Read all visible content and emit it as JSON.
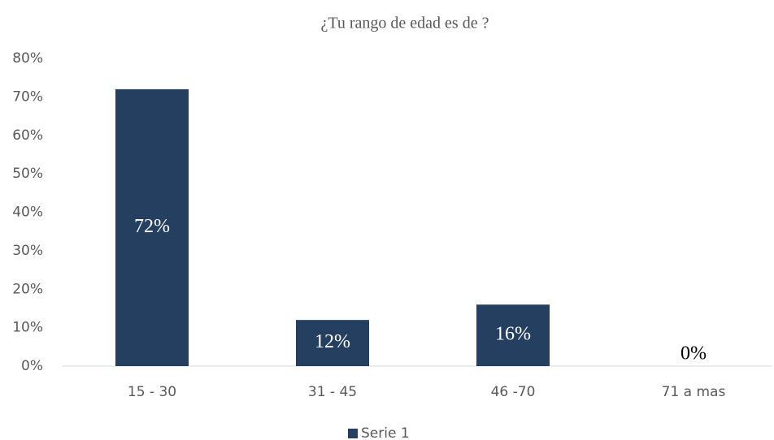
{
  "chart_data": {
    "type": "bar",
    "title": "¿Tu rango de edad es de ?",
    "categories": [
      "15 - 30",
      "31  - 45",
      "46 -70",
      "71 a mas"
    ],
    "series": [
      {
        "name": "Serie 1",
        "color": "#243f60",
        "values": [
          72,
          12,
          16,
          0
        ],
        "value_labels": [
          "72%",
          "12%",
          "16%",
          "0%"
        ]
      }
    ],
    "ylim": [
      0,
      80
    ],
    "yticks": [
      {
        "value": 0,
        "label": "0%"
      },
      {
        "value": 10,
        "label": "10%"
      },
      {
        "value": 20,
        "label": "20%"
      },
      {
        "value": 30,
        "label": "30%"
      },
      {
        "value": 40,
        "label": "40%"
      },
      {
        "value": 50,
        "label": "50%"
      },
      {
        "value": 60,
        "label": "60%"
      },
      {
        "value": 70,
        "label": "70%"
      },
      {
        "value": 80,
        "label": "80%"
      }
    ],
    "grid": false,
    "legend": "bottom"
  }
}
